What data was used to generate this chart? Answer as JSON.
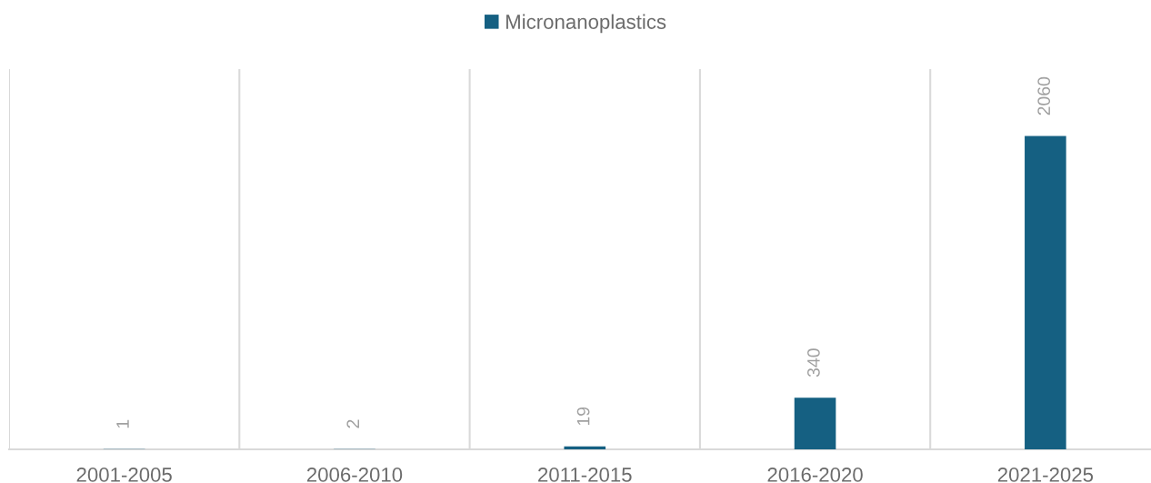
{
  "chart_data": {
    "type": "bar",
    "categories": [
      "2001-2005",
      "2006-2010",
      "2011-2015",
      "2016-2020",
      "2021-2025"
    ],
    "series": [
      {
        "name": "Micronanoplastics",
        "color": "#156082",
        "values": [
          1,
          2,
          19,
          340,
          2060
        ]
      }
    ],
    "ylim": [
      0,
      2500
    ],
    "tick_labels": "x",
    "grid": "x",
    "legend": "top",
    "data_labels": true
  }
}
